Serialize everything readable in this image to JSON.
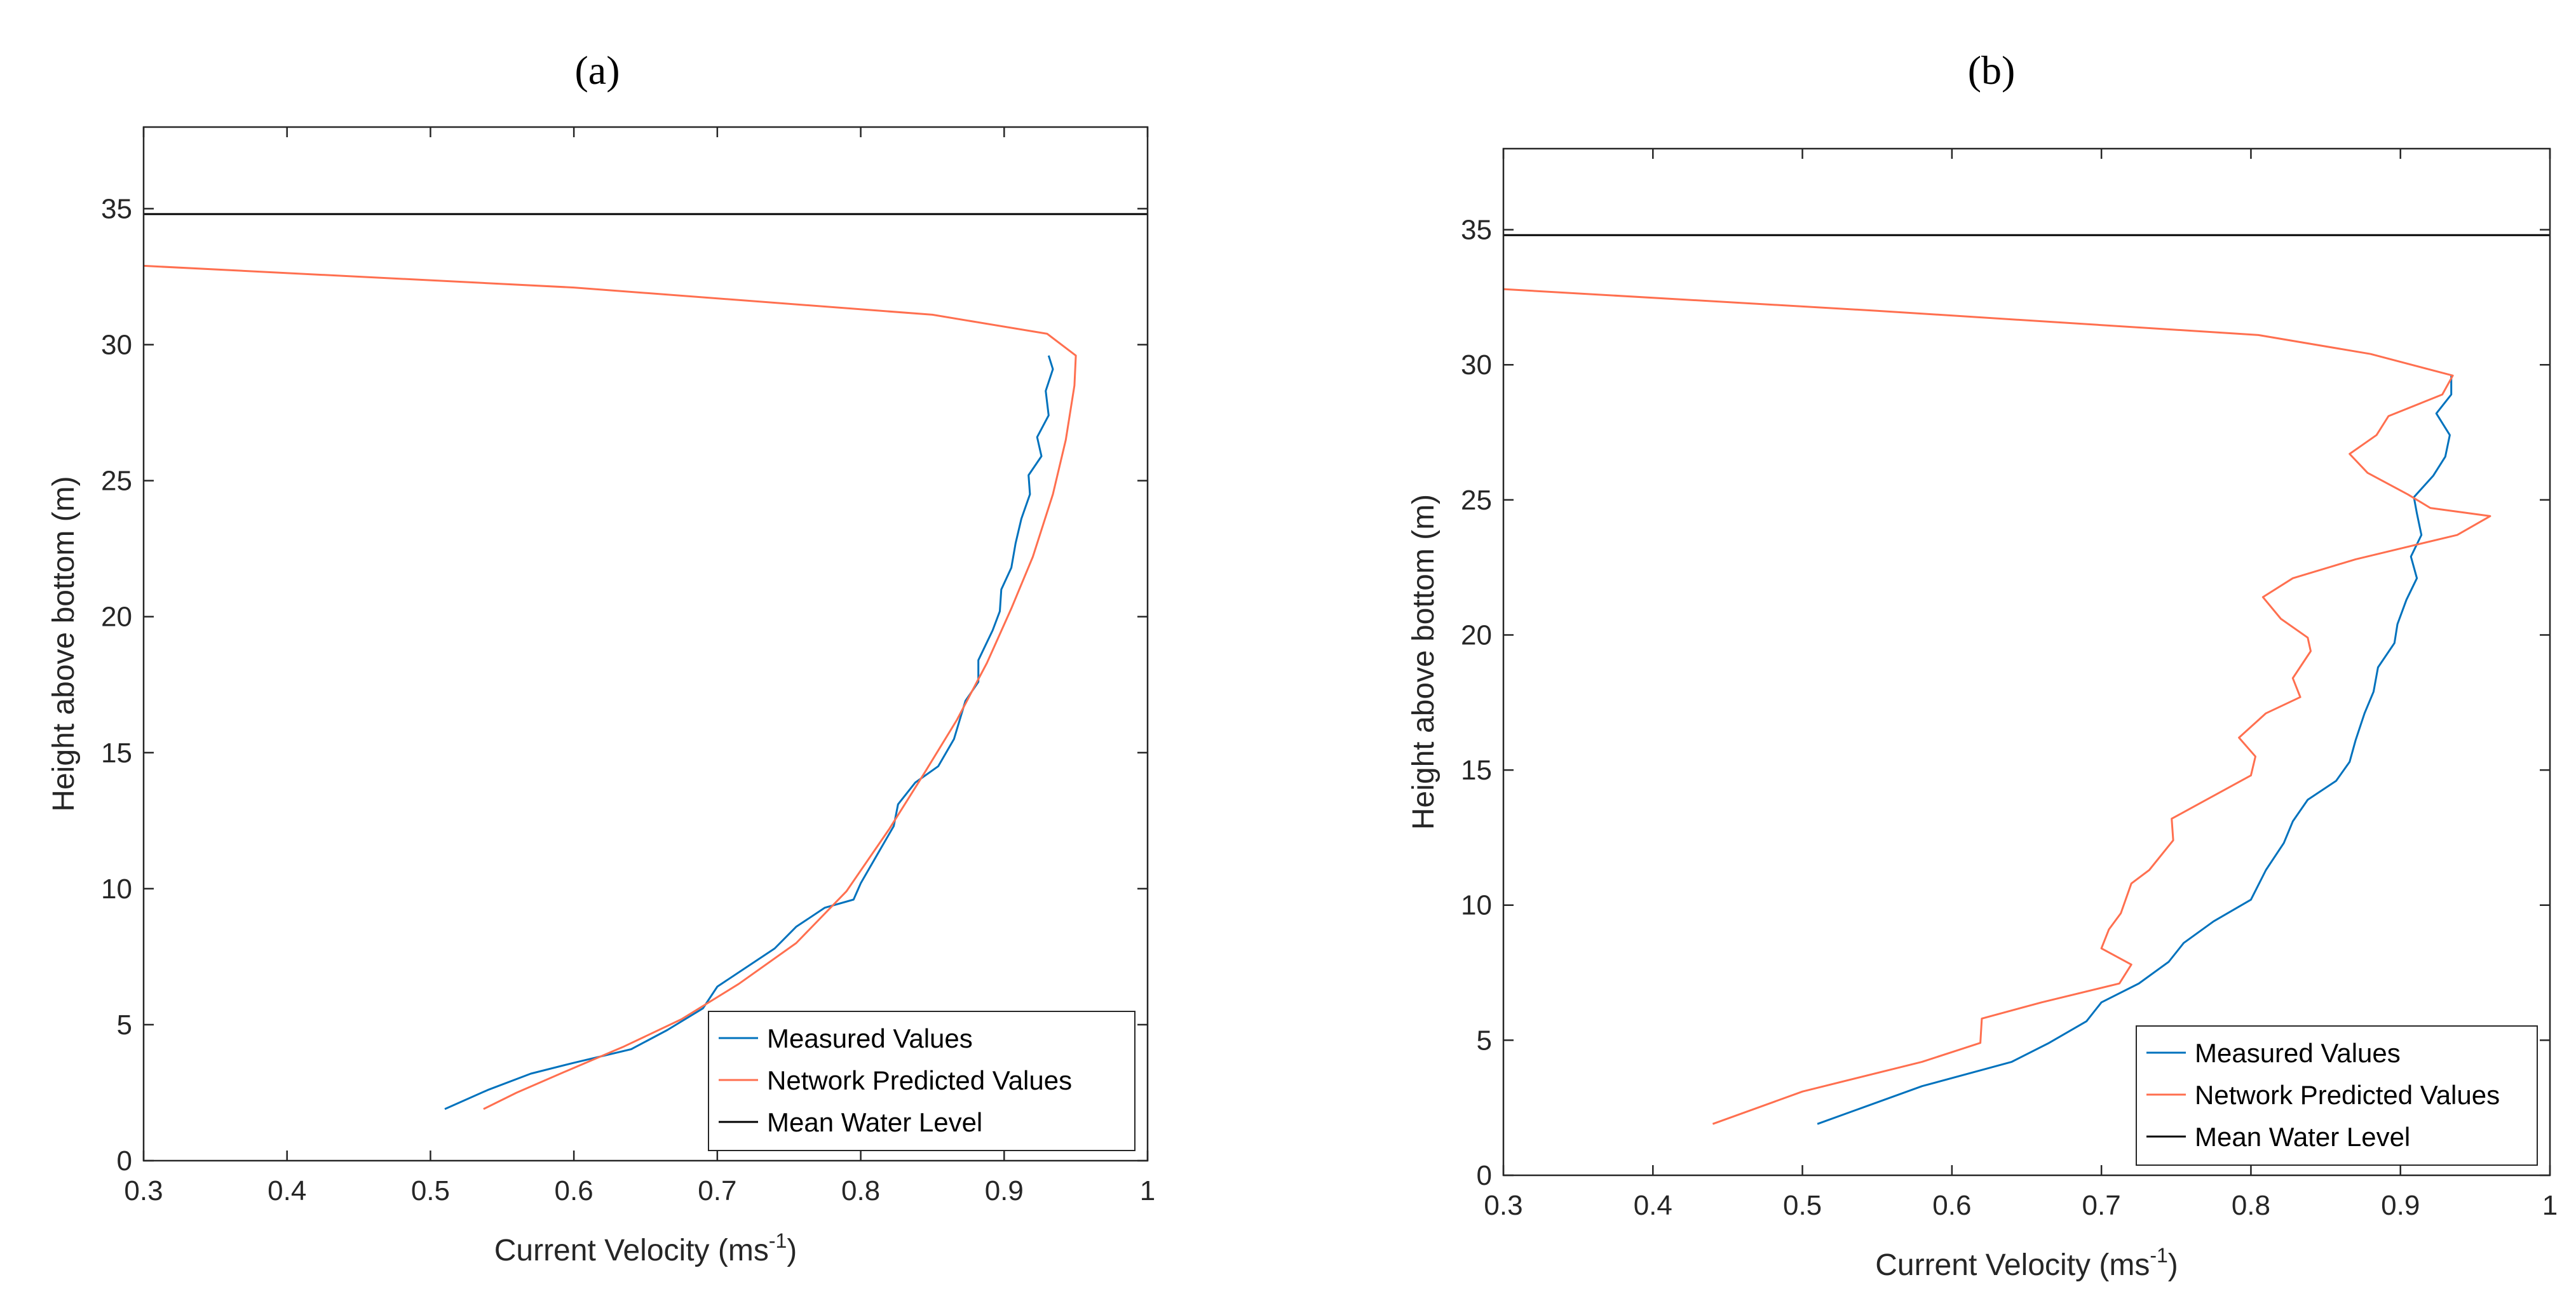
{
  "chart_data": [
    {
      "type": "line",
      "panel_label": "(a)",
      "xlabel": "Current Velocity (ms",
      "xlabel_sup": "-1",
      "xlabel_end": ")",
      "ylabel": "Height above bottom (m)",
      "xlim": [
        0.3,
        1.0
      ],
      "ylim": [
        0,
        38
      ],
      "xticks": [
        0.3,
        0.4,
        0.5,
        0.6,
        0.7,
        0.8,
        0.9,
        1.0
      ],
      "xtick_labels": [
        "0.3",
        "0.4",
        "0.5",
        "0.6",
        "0.7",
        "0.8",
        "0.9",
        "1"
      ],
      "yticks": [
        0,
        5,
        10,
        15,
        20,
        25,
        30,
        35
      ],
      "ytick_labels": [
        "0",
        "5",
        "10",
        "15",
        "20",
        "25",
        "30",
        "35"
      ],
      "legend_position": "bottom-right",
      "series": [
        {
          "name": "Measured Values",
          "color": "#0072BD",
          "points": [
            [
              0.51,
              1.9
            ],
            [
              0.54,
              2.6
            ],
            [
              0.57,
              3.2
            ],
            [
              0.6,
              3.6
            ],
            [
              0.64,
              4.1
            ],
            [
              0.665,
              4.8
            ],
            [
              0.69,
              5.6
            ],
            [
              0.7,
              6.4
            ],
            [
              0.72,
              7.1
            ],
            [
              0.74,
              7.8
            ],
            [
              0.755,
              8.6
            ],
            [
              0.775,
              9.3
            ],
            [
              0.795,
              9.6
            ],
            [
              0.8,
              10.2
            ],
            [
              0.812,
              11.3
            ],
            [
              0.823,
              12.3
            ],
            [
              0.826,
              13.1
            ],
            [
              0.838,
              13.9
            ],
            [
              0.854,
              14.5
            ],
            [
              0.865,
              15.5
            ],
            [
              0.873,
              16.9
            ],
            [
              0.882,
              17.6
            ],
            [
              0.882,
              18.4
            ],
            [
              0.892,
              19.5
            ],
            [
              0.897,
              20.2
            ],
            [
              0.898,
              21
            ],
            [
              0.905,
              21.8
            ],
            [
              0.908,
              22.7
            ],
            [
              0.912,
              23.6
            ],
            [
              0.918,
              24.5
            ],
            [
              0.917,
              25.2
            ],
            [
              0.926,
              25.9
            ],
            [
              0.923,
              26.6
            ],
            [
              0.931,
              27.4
            ],
            [
              0.929,
              28.3
            ],
            [
              0.934,
              29.1
            ],
            [
              0.931,
              29.6
            ]
          ]
        },
        {
          "name": "Network Predicted Values",
          "color": "#FF6F4F",
          "points": [
            [
              0.537,
              1.9
            ],
            [
              0.56,
              2.5
            ],
            [
              0.595,
              3.3
            ],
            [
              0.635,
              4.2
            ],
            [
              0.675,
              5.2
            ],
            [
              0.715,
              6.5
            ],
            [
              0.755,
              8
            ],
            [
              0.79,
              9.9
            ],
            [
              0.82,
              12.2
            ],
            [
              0.845,
              14.3
            ],
            [
              0.867,
              16.2
            ],
            [
              0.888,
              18.3
            ],
            [
              0.905,
              20.3
            ],
            [
              0.92,
              22.2
            ],
            [
              0.934,
              24.5
            ],
            [
              0.943,
              26.5
            ],
            [
              0.949,
              28.5
            ],
            [
              0.95,
              29.6
            ],
            [
              0.93,
              30.4
            ],
            [
              0.85,
              31.1
            ],
            [
              0.6,
              32.1
            ],
            [
              0.3,
              32.9
            ]
          ]
        },
        {
          "name": "Mean Water Level",
          "color": "#000000",
          "points": [
            [
              0.3,
              34.8
            ],
            [
              1.0,
              34.8
            ]
          ]
        }
      ]
    },
    {
      "type": "line",
      "panel_label": "(b)",
      "xlabel": "Current Velocity (ms",
      "xlabel_sup": "-1",
      "xlabel_end": ")",
      "ylabel": "Height above bottom (m)",
      "xlim": [
        0.3,
        1.0
      ],
      "ylim": [
        0,
        38
      ],
      "xticks": [
        0.3,
        0.4,
        0.5,
        0.6,
        0.7,
        0.8,
        0.9,
        1.0
      ],
      "xtick_labels": [
        "0.3",
        "0.4",
        "0.5",
        "0.6",
        "0.7",
        "0.8",
        "0.9",
        "1"
      ],
      "yticks": [
        0,
        5,
        10,
        15,
        20,
        25,
        30,
        35
      ],
      "ytick_labels": [
        "0",
        "5",
        "10",
        "15",
        "20",
        "25",
        "30",
        "35"
      ],
      "legend_position": "bottom-right",
      "series": [
        {
          "name": "Measured Values",
          "color": "#0072BD",
          "points": [
            [
              0.51,
              1.9
            ],
            [
              0.54,
              2.5
            ],
            [
              0.58,
              3.3
            ],
            [
              0.64,
              4.2
            ],
            [
              0.665,
              4.9
            ],
            [
              0.69,
              5.7
            ],
            [
              0.7,
              6.4
            ],
            [
              0.725,
              7.1
            ],
            [
              0.745,
              7.9
            ],
            [
              0.755,
              8.6
            ],
            [
              0.775,
              9.4
            ],
            [
              0.8,
              10.2
            ],
            [
              0.81,
              11.3
            ],
            [
              0.822,
              12.3
            ],
            [
              0.828,
              13.1
            ],
            [
              0.838,
              13.9
            ],
            [
              0.857,
              14.6
            ],
            [
              0.866,
              15.3
            ],
            [
              0.87,
              16.1
            ],
            [
              0.876,
              17.1
            ],
            [
              0.882,
              17.9
            ],
            [
              0.885,
              18.8
            ],
            [
              0.896,
              19.7
            ],
            [
              0.898,
              20.4
            ],
            [
              0.904,
              21.3
            ],
            [
              0.911,
              22.1
            ],
            [
              0.907,
              22.9
            ],
            [
              0.914,
              23.7
            ],
            [
              0.911,
              24.5
            ],
            [
              0.909,
              25.1
            ],
            [
              0.922,
              25.9
            ],
            [
              0.93,
              26.6
            ],
            [
              0.933,
              27.4
            ],
            [
              0.924,
              28.2
            ],
            [
              0.934,
              28.9
            ],
            [
              0.934,
              29.6
            ]
          ]
        },
        {
          "name": "Network Predicted Values",
          "color": "#FF6F4F",
          "points": [
            [
              0.44,
              1.9
            ],
            [
              0.5,
              3.1
            ],
            [
              0.58,
              4.2
            ],
            [
              0.619,
              4.9
            ],
            [
              0.62,
              5.8
            ],
            [
              0.66,
              6.4
            ],
            [
              0.712,
              7.1
            ],
            [
              0.72,
              7.8
            ],
            [
              0.7,
              8.4
            ],
            [
              0.705,
              9.1
            ],
            [
              0.713,
              9.7
            ],
            [
              0.72,
              10.8
            ],
            [
              0.732,
              11.3
            ],
            [
              0.748,
              12.4
            ],
            [
              0.747,
              13.2
            ],
            [
              0.8,
              14.8
            ],
            [
              0.803,
              15.5
            ],
            [
              0.792,
              16.2
            ],
            [
              0.81,
              17.1
            ],
            [
              0.833,
              17.7
            ],
            [
              0.828,
              18.4
            ],
            [
              0.84,
              19.4
            ],
            [
              0.838,
              19.9
            ],
            [
              0.82,
              20.6
            ],
            [
              0.808,
              21.4
            ],
            [
              0.828,
              22.1
            ],
            [
              0.87,
              22.8
            ],
            [
              0.9,
              23.2
            ],
            [
              0.938,
              23.7
            ],
            [
              0.96,
              24.4
            ],
            [
              0.92,
              24.7
            ],
            [
              0.905,
              25.2
            ],
            [
              0.878,
              26
            ],
            [
              0.866,
              26.7
            ],
            [
              0.884,
              27.4
            ],
            [
              0.892,
              28.1
            ],
            [
              0.928,
              28.9
            ],
            [
              0.935,
              29.6
            ],
            [
              0.88,
              30.4
            ],
            [
              0.805,
              31.1
            ],
            [
              0.55,
              32
            ],
            [
              0.3,
              32.8
            ]
          ]
        },
        {
          "name": "Mean Water Level",
          "color": "#000000",
          "points": [
            [
              0.3,
              34.8
            ],
            [
              1.0,
              34.8
            ]
          ]
        }
      ]
    }
  ]
}
